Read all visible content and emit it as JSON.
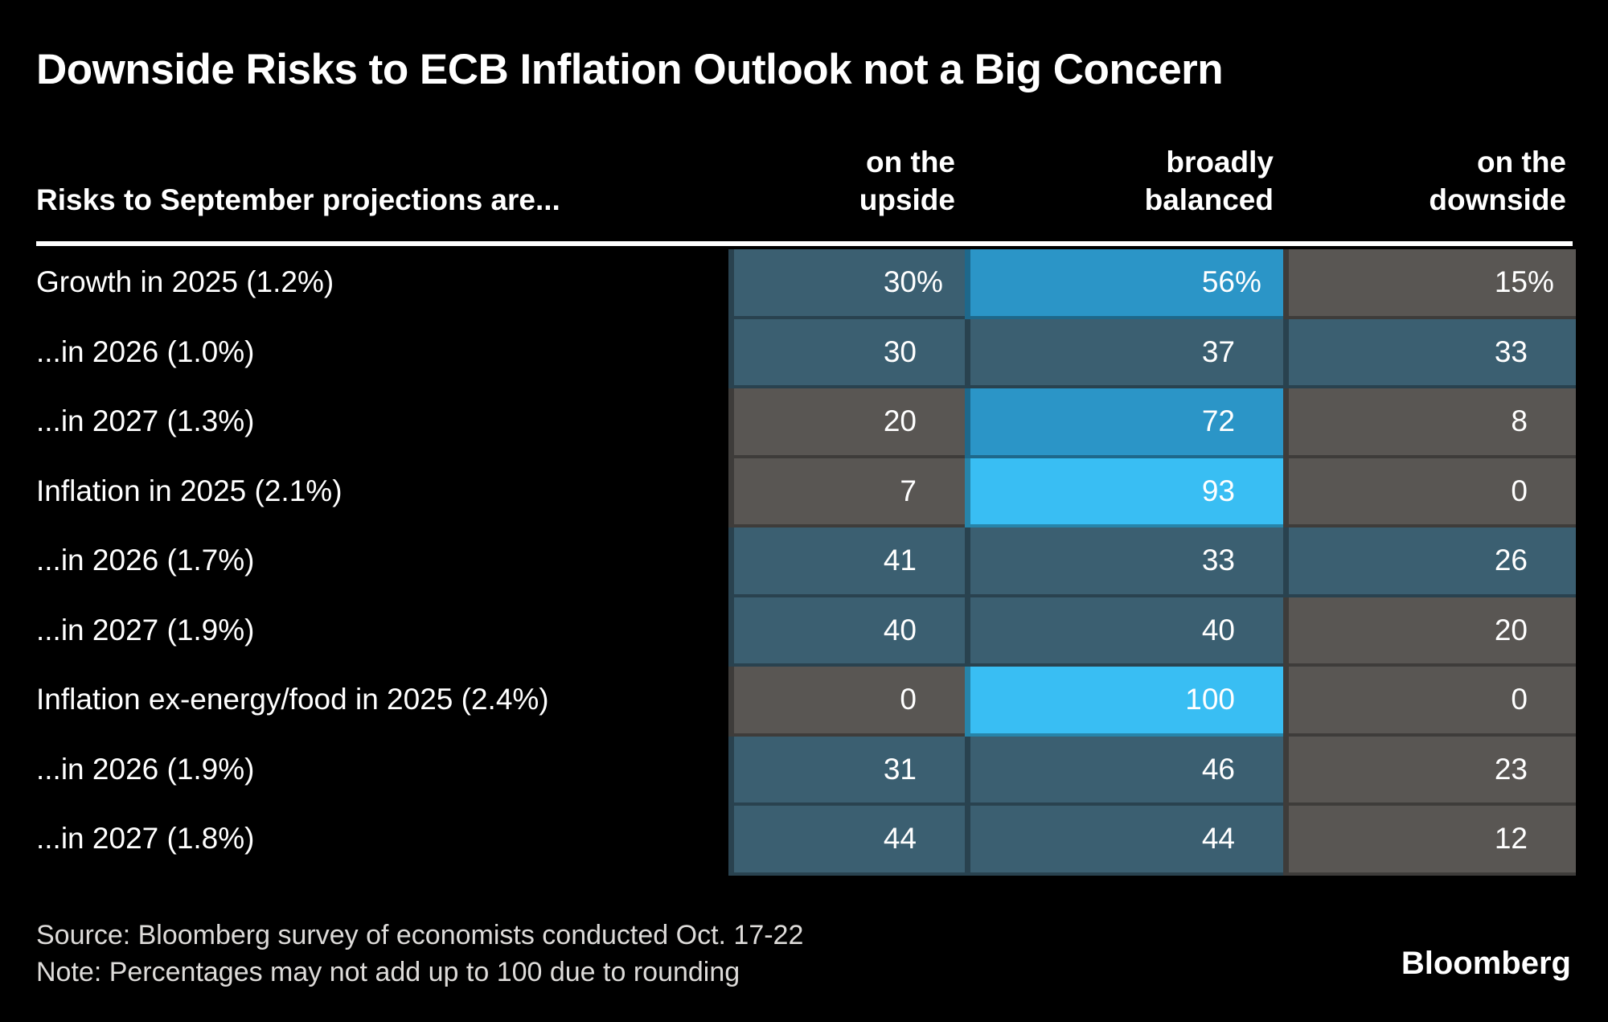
{
  "title": "Downside Risks to ECB Inflation Outlook not a Big Concern",
  "table": {
    "row_header_label": "Risks to September projections are...",
    "columns": [
      {
        "label": "on the\nupside"
      },
      {
        "label": "broadly\nbalanced"
      },
      {
        "label": "on the\ndownside"
      }
    ],
    "rows": [
      {
        "label": "Growth in 2025 (1.2%)",
        "values": [
          30,
          56,
          15
        ],
        "show_percent": true
      },
      {
        "label": "...in 2026 (1.0%)",
        "values": [
          30,
          37,
          33
        ],
        "show_percent": false
      },
      {
        "label": "...in 2027 (1.3%)",
        "values": [
          20,
          72,
          8
        ],
        "show_percent": false
      },
      {
        "label": "Inflation in 2025 (2.1%)",
        "values": [
          7,
          93,
          0
        ],
        "show_percent": false
      },
      {
        "label": "...in 2026 (1.7%)",
        "values": [
          41,
          33,
          26
        ],
        "show_percent": false
      },
      {
        "label": "...in 2027 (1.9%)",
        "values": [
          40,
          40,
          20
        ],
        "show_percent": false
      },
      {
        "label": "Inflation ex-energy/food in 2025 (2.4%)",
        "values": [
          0,
          100,
          0
        ],
        "show_percent": false
      },
      {
        "label": "...in 2026 (1.9%)",
        "values": [
          31,
          46,
          23
        ],
        "show_percent": false
      },
      {
        "label": "...in 2027 (1.8%)",
        "values": [
          44,
          44,
          12
        ],
        "show_percent": false
      }
    ]
  },
  "footer": {
    "source": "Source: Bloomberg survey of economists conducted Oct. 17-22",
    "note": "Note: Percentages may not add up to 100 due to rounding",
    "brand": "Bloomberg"
  },
  "colors": {
    "background": "#000000",
    "rule": "#FFFFFF",
    "text": "#FFFFFF",
    "footer_text": "#DDDBD9",
    "heat_low_gray": "#595653",
    "heat_mid_slate": "#3B5F71",
    "heat_high_blue": "#2B95C7",
    "heat_max_cyan": "#39BEF3"
  },
  "chart_data": {
    "type": "heatmap",
    "title": "Downside Risks to ECB Inflation Outlook not a Big Concern",
    "subtitle": "Risks to September projections are...",
    "columns": [
      "on the upside",
      "broadly balanced",
      "on the downside"
    ],
    "rows": [
      "Growth in 2025 (1.2%)",
      "...in 2026 (1.0%)",
      "...in 2027 (1.3%)",
      "Inflation in 2025 (2.1%)",
      "...in 2026 (1.7%)",
      "...in 2027 (1.9%)",
      "Inflation ex-energy/food in 2025 (2.4%)",
      "...in 2026 (1.9%)",
      "...in 2027 (1.8%)"
    ],
    "values_percent": [
      [
        30,
        56,
        15
      ],
      [
        30,
        37,
        33
      ],
      [
        20,
        72,
        8
      ],
      [
        7,
        93,
        0
      ],
      [
        41,
        33,
        26
      ],
      [
        40,
        40,
        20
      ],
      [
        0,
        100,
        0
      ],
      [
        31,
        46,
        23
      ],
      [
        44,
        44,
        12
      ]
    ],
    "color_scale": "higher percentage = brighter blue (gray ≤25, slate 26-50, blue 51-79, cyan ≥80)",
    "source": "Source: Bloomberg survey of economists conducted Oct. 17-22",
    "note": "Note: Percentages may not add up to 100 due to rounding"
  }
}
